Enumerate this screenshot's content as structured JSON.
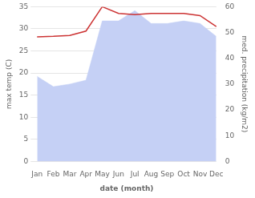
{
  "chart_data": {
    "type": "line",
    "xlabel": "date (month)",
    "ylabel": "max temp (C)",
    "y2label": "med. precipitation (kg/m2)",
    "categories": [
      "Jan",
      "Feb",
      "Mar",
      "Apr",
      "May",
      "Jun",
      "Jul",
      "Aug",
      "Sep",
      "Oct",
      "Nov",
      "Dec"
    ],
    "series": [
      {
        "type": "area",
        "axis": "y2",
        "color": "#c5d0f5",
        "values": [
          33,
          29,
          30,
          31.5,
          54.5,
          54.5,
          58.5,
          53.5,
          53.5,
          54.5,
          53.5,
          48.5
        ]
      },
      {
        "type": "line",
        "color": "#cc3333",
        "values": [
          28.2,
          28.3,
          28.5,
          29.5,
          35.0,
          33.5,
          33.2,
          33.5,
          33.5,
          33.5,
          33.0,
          30.5
        ]
      }
    ],
    "ylim": [
      0,
      35
    ],
    "yticks": [
      0,
      5,
      10,
      15,
      20,
      25,
      30,
      35
    ],
    "y2lim": [
      0,
      60
    ],
    "y2ticks": [
      0,
      10,
      20,
      30,
      40,
      50,
      60
    ],
    "grid": true
  }
}
